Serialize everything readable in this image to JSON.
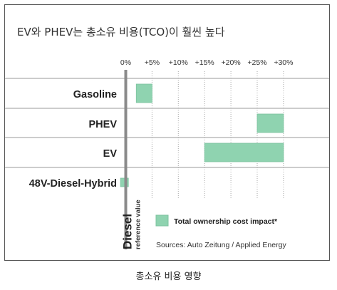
{
  "caption": "총소유 비용 영향",
  "chart_data": {
    "type": "bar",
    "orientation": "horizontal",
    "title": "EV와 PHEV는 총소유 비용(TCO)이 훨씬 높다",
    "categories": [
      "Gasoline",
      "PHEV",
      "EV",
      "48V-Diesel-Hybrid"
    ],
    "series": [
      {
        "name": "Total ownership cost impact*",
        "ranges": [
          [
            2,
            5
          ],
          [
            25,
            30
          ],
          [
            15,
            30
          ],
          [
            -1,
            0.5
          ]
        ]
      }
    ],
    "x_ticks": [
      "0%",
      "+5%",
      "+10%",
      "+15%",
      "+20%",
      "+25%",
      "+30%"
    ],
    "x_tick_values": [
      0,
      5,
      10,
      15,
      20,
      25,
      30
    ],
    "xlim": [
      -1,
      31
    ],
    "reference": {
      "value": 0,
      "label": "Diesel",
      "sublabel": "reference value"
    },
    "legend_position": "bottom",
    "source": "Sources: Auto Zeitung / Applied Energy",
    "bar_color": "#8fd3b0",
    "bar_border_color": "#7cc39f",
    "grid": true,
    "grid_color": "#999999"
  }
}
